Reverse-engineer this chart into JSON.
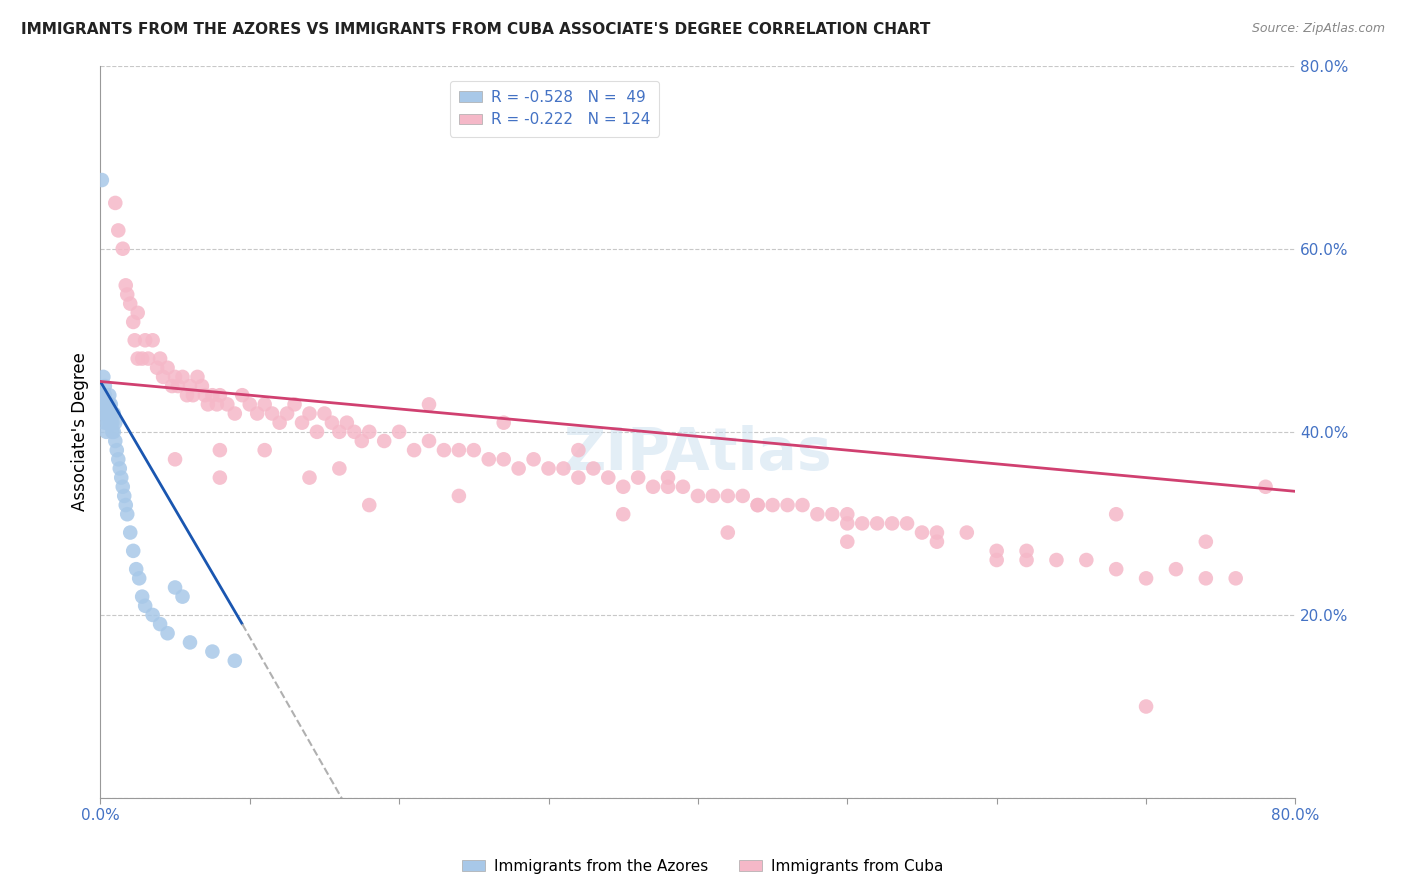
{
  "title": "IMMIGRANTS FROM THE AZORES VS IMMIGRANTS FROM CUBA ASSOCIATE'S DEGREE CORRELATION CHART",
  "source": "Source: ZipAtlas.com",
  "ylabel": "Associate's Degree",
  "xlim": [
    0.0,
    0.8
  ],
  "ylim": [
    0.0,
    0.8
  ],
  "azores_color": "#a8c8e8",
  "cuba_color": "#f5b8c8",
  "azores_line_color": "#1a56b0",
  "cuba_line_color": "#d04070",
  "azores_scatter": {
    "x": [
      0.001,
      0.001,
      0.002,
      0.002,
      0.002,
      0.003,
      0.003,
      0.003,
      0.003,
      0.004,
      0.004,
      0.004,
      0.005,
      0.005,
      0.005,
      0.006,
      0.006,
      0.006,
      0.007,
      0.007,
      0.007,
      0.008,
      0.008,
      0.009,
      0.009,
      0.01,
      0.01,
      0.011,
      0.012,
      0.013,
      0.014,
      0.015,
      0.016,
      0.017,
      0.018,
      0.02,
      0.022,
      0.024,
      0.026,
      0.028,
      0.03,
      0.035,
      0.04,
      0.045,
      0.05,
      0.055,
      0.06,
      0.075,
      0.09
    ],
    "y": [
      0.675,
      0.44,
      0.46,
      0.42,
      0.43,
      0.45,
      0.44,
      0.43,
      0.41,
      0.43,
      0.42,
      0.4,
      0.43,
      0.42,
      0.41,
      0.44,
      0.43,
      0.42,
      0.43,
      0.42,
      0.41,
      0.41,
      0.4,
      0.42,
      0.4,
      0.41,
      0.39,
      0.38,
      0.37,
      0.36,
      0.35,
      0.34,
      0.33,
      0.32,
      0.31,
      0.29,
      0.27,
      0.25,
      0.24,
      0.22,
      0.21,
      0.2,
      0.19,
      0.18,
      0.23,
      0.22,
      0.17,
      0.16,
      0.15
    ]
  },
  "cuba_scatter": {
    "x": [
      0.01,
      0.012,
      0.015,
      0.017,
      0.018,
      0.02,
      0.022,
      0.023,
      0.025,
      0.028,
      0.03,
      0.032,
      0.035,
      0.038,
      0.04,
      0.042,
      0.045,
      0.048,
      0.05,
      0.052,
      0.055,
      0.058,
      0.06,
      0.062,
      0.065,
      0.068,
      0.07,
      0.072,
      0.075,
      0.078,
      0.08,
      0.085,
      0.09,
      0.095,
      0.1,
      0.105,
      0.11,
      0.115,
      0.12,
      0.125,
      0.13,
      0.135,
      0.14,
      0.145,
      0.15,
      0.155,
      0.16,
      0.165,
      0.17,
      0.175,
      0.18,
      0.19,
      0.2,
      0.21,
      0.22,
      0.23,
      0.24,
      0.25,
      0.26,
      0.27,
      0.28,
      0.29,
      0.3,
      0.31,
      0.32,
      0.33,
      0.34,
      0.35,
      0.36,
      0.37,
      0.38,
      0.39,
      0.4,
      0.41,
      0.42,
      0.43,
      0.44,
      0.45,
      0.46,
      0.47,
      0.48,
      0.49,
      0.5,
      0.51,
      0.52,
      0.53,
      0.54,
      0.55,
      0.56,
      0.58,
      0.6,
      0.62,
      0.64,
      0.66,
      0.68,
      0.7,
      0.72,
      0.74,
      0.76,
      0.78,
      0.025,
      0.05,
      0.08,
      0.11,
      0.14,
      0.18,
      0.22,
      0.27,
      0.32,
      0.38,
      0.44,
      0.5,
      0.56,
      0.62,
      0.68,
      0.74,
      0.08,
      0.16,
      0.24,
      0.35,
      0.42,
      0.5,
      0.6,
      0.7
    ],
    "y": [
      0.65,
      0.62,
      0.6,
      0.56,
      0.55,
      0.54,
      0.52,
      0.5,
      0.53,
      0.48,
      0.5,
      0.48,
      0.5,
      0.47,
      0.48,
      0.46,
      0.47,
      0.45,
      0.46,
      0.45,
      0.46,
      0.44,
      0.45,
      0.44,
      0.46,
      0.45,
      0.44,
      0.43,
      0.44,
      0.43,
      0.44,
      0.43,
      0.42,
      0.44,
      0.43,
      0.42,
      0.43,
      0.42,
      0.41,
      0.42,
      0.43,
      0.41,
      0.42,
      0.4,
      0.42,
      0.41,
      0.4,
      0.41,
      0.4,
      0.39,
      0.4,
      0.39,
      0.4,
      0.38,
      0.39,
      0.38,
      0.38,
      0.38,
      0.37,
      0.37,
      0.36,
      0.37,
      0.36,
      0.36,
      0.35,
      0.36,
      0.35,
      0.34,
      0.35,
      0.34,
      0.34,
      0.34,
      0.33,
      0.33,
      0.33,
      0.33,
      0.32,
      0.32,
      0.32,
      0.32,
      0.31,
      0.31,
      0.31,
      0.3,
      0.3,
      0.3,
      0.3,
      0.29,
      0.29,
      0.29,
      0.27,
      0.27,
      0.26,
      0.26,
      0.25,
      0.24,
      0.25,
      0.24,
      0.24,
      0.34,
      0.48,
      0.37,
      0.35,
      0.38,
      0.35,
      0.32,
      0.43,
      0.41,
      0.38,
      0.35,
      0.32,
      0.3,
      0.28,
      0.26,
      0.31,
      0.28,
      0.38,
      0.36,
      0.33,
      0.31,
      0.29,
      0.28,
      0.26,
      0.1
    ]
  },
  "azores_line": {
    "x0": 0.0,
    "y0": 0.455,
    "x1": 0.095,
    "y1": 0.19,
    "xdash0": 0.095,
    "ydash0": 0.19,
    "xdash1": 0.2,
    "ydash1": -0.11
  },
  "cuba_line": {
    "x0": 0.0,
    "y0": 0.455,
    "x1": 0.8,
    "y1": 0.335
  }
}
